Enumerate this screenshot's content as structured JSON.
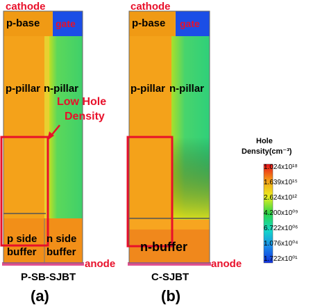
{
  "colors": {
    "accent_red": "#e8102a",
    "orange": "#f59a10",
    "green": "#3fd06a",
    "yellow": "#d8e81c"
  },
  "left": {
    "cathode": "cathode",
    "gate": "gate",
    "anode": "anode",
    "p_base": "p-base",
    "p_pillar": "p-pillar",
    "n_pillar": "n-pillar",
    "p_side": "p side",
    "buffer_left": "buffer",
    "n_side": "n side",
    "buffer_right": "buffer",
    "name": "P-SB-SJBT",
    "panel": "(a)"
  },
  "annotation": {
    "line1": "Low Hole",
    "line2": "Density"
  },
  "right": {
    "cathode": "cathode",
    "gate": "gate",
    "anode": "anode",
    "p_base": "p-base",
    "p_pillar": "p-pillar",
    "n_pillar": "n-pillar",
    "n_buffer": "n-buffer",
    "name": "C-SJBT",
    "panel": "(b)"
  },
  "legend": {
    "title1": "Hole",
    "title2": "Density(cm⁻³)",
    "ticks": [
      "1.024x10¹⁸",
      "1.639x10¹⁵",
      "2.624x10¹²",
      "4.200x10⁰⁹",
      "6.722x10⁰⁶",
      "1.076x10⁰⁴",
      "1.722x10⁰¹"
    ]
  }
}
